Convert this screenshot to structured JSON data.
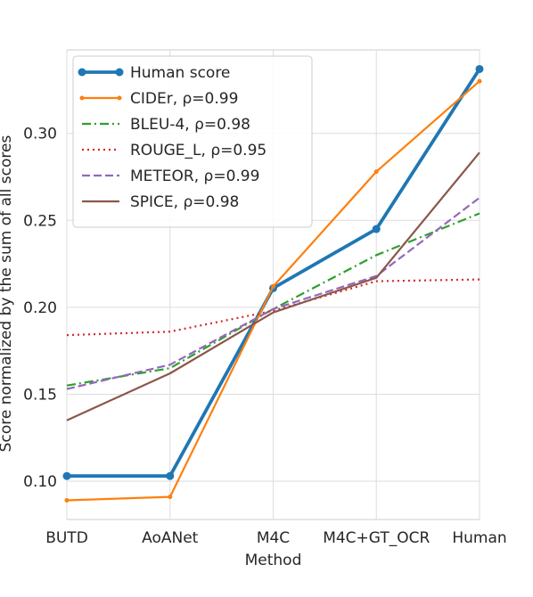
{
  "chart_data": {
    "type": "line",
    "title": "",
    "xlabel": "Method",
    "ylabel": "Score normalized by the sum of all scores",
    "categories": [
      "BUTD",
      "AoANet",
      "M4C",
      "M4C+GT_OCR",
      "Human"
    ],
    "ylim": [
      0.078,
      0.348
    ],
    "yticks": [
      "0.10",
      "0.15",
      "0.20",
      "0.25",
      "0.30"
    ],
    "grid": true,
    "legend_position": "upper left",
    "series": [
      {
        "name": "Human score",
        "values": [
          0.103,
          0.103,
          0.211,
          0.245,
          0.337
        ],
        "color": "#1f77b4",
        "dash": "solid",
        "marker": "circle",
        "width": "thick"
      },
      {
        "name": "CIDEr, ρ=0.99",
        "values": [
          0.089,
          0.091,
          0.212,
          0.278,
          0.33
        ],
        "color": "#ff7f0e",
        "dash": "solid",
        "marker": "dot",
        "width": "normal"
      },
      {
        "name": "BLEU-4, ρ=0.98",
        "values": [
          0.155,
          0.165,
          0.199,
          0.23,
          0.254
        ],
        "color": "#2ca02c",
        "dash": "dashdot",
        "marker": "none",
        "width": "normal"
      },
      {
        "name": "ROUGE_L, ρ=0.95",
        "values": [
          0.184,
          0.186,
          0.198,
          0.215,
          0.216
        ],
        "color": "#d62728",
        "dash": "dotted",
        "marker": "none",
        "width": "normal"
      },
      {
        "name": "METEOR, ρ=0.99",
        "values": [
          0.153,
          0.167,
          0.199,
          0.218,
          0.263
        ],
        "color": "#9467bd",
        "dash": "dashed",
        "marker": "none",
        "width": "normal"
      },
      {
        "name": "SPICE, ρ=0.98",
        "values": [
          0.135,
          0.162,
          0.197,
          0.217,
          0.289
        ],
        "color": "#8c564b",
        "dash": "solid",
        "marker": "none",
        "width": "normal"
      }
    ]
  }
}
